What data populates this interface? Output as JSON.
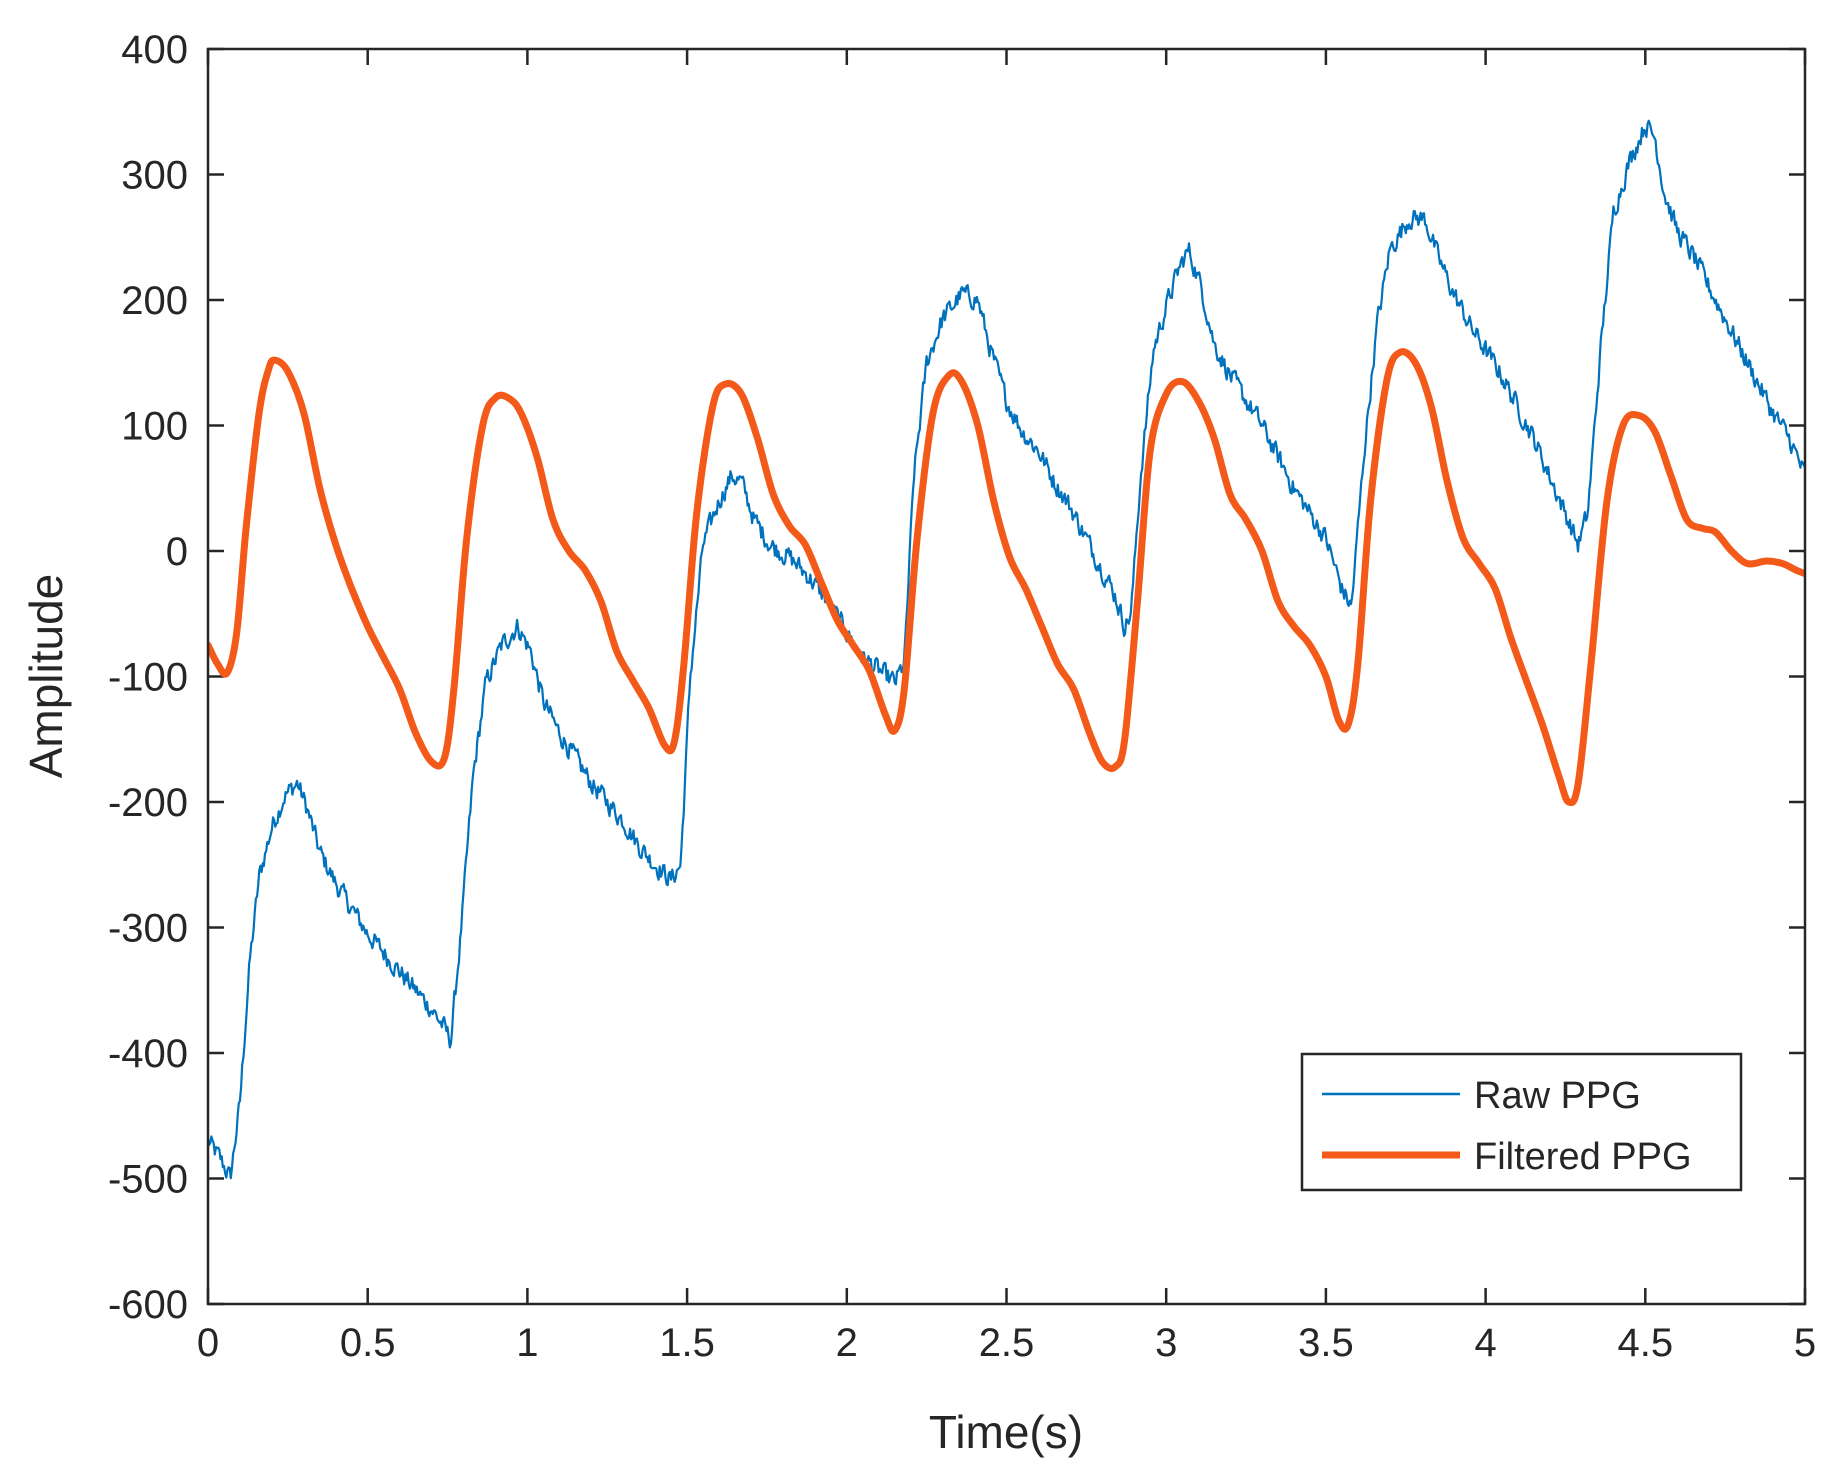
{
  "chart_data": {
    "type": "line",
    "title": "",
    "xlabel": "Time(s)",
    "ylabel": "Amplitude",
    "xlim": [
      0,
      5
    ],
    "ylim": [
      -600,
      400
    ],
    "xticks": [
      0,
      0.5,
      1,
      1.5,
      2,
      2.5,
      3,
      3.5,
      4,
      4.5,
      5
    ],
    "xtick_labels": [
      "0",
      "0.5",
      "1",
      "1.5",
      "2",
      "2.5",
      "3",
      "3.5",
      "4",
      "4.5",
      "5"
    ],
    "yticks": [
      -600,
      -500,
      -400,
      -300,
      -200,
      -100,
      0,
      100,
      200,
      300,
      400
    ],
    "ytick_labels": [
      "-600",
      "-500",
      "-400",
      "-300",
      "-200",
      "-100",
      "0",
      "100",
      "200",
      "300",
      "400"
    ],
    "grid": false,
    "legend": {
      "position": "bottom-right",
      "entries": [
        "Raw PPG",
        "Filtered PPG"
      ]
    },
    "series": [
      {
        "name": "Raw PPG",
        "color": "#0072BD",
        "style": "noisy",
        "noise_amplitude": 12,
        "points": [
          [
            0.0,
            -470
          ],
          [
            0.04,
            -485
          ],
          [
            0.07,
            -500
          ],
          [
            0.1,
            -440
          ],
          [
            0.13,
            -330
          ],
          [
            0.16,
            -260
          ],
          [
            0.2,
            -220
          ],
          [
            0.24,
            -195
          ],
          [
            0.28,
            -185
          ],
          [
            0.31,
            -205
          ],
          [
            0.35,
            -240
          ],
          [
            0.4,
            -265
          ],
          [
            0.45,
            -285
          ],
          [
            0.5,
            -305
          ],
          [
            0.55,
            -320
          ],
          [
            0.6,
            -335
          ],
          [
            0.65,
            -350
          ],
          [
            0.7,
            -365
          ],
          [
            0.74,
            -380
          ],
          [
            0.76,
            -390
          ],
          [
            0.79,
            -310
          ],
          [
            0.83,
            -180
          ],
          [
            0.87,
            -105
          ],
          [
            0.92,
            -75
          ],
          [
            0.97,
            -60
          ],
          [
            1.01,
            -80
          ],
          [
            1.05,
            -120
          ],
          [
            1.1,
            -145
          ],
          [
            1.15,
            -165
          ],
          [
            1.2,
            -185
          ],
          [
            1.25,
            -200
          ],
          [
            1.3,
            -215
          ],
          [
            1.35,
            -235
          ],
          [
            1.4,
            -250
          ],
          [
            1.45,
            -262
          ],
          [
            1.48,
            -250
          ],
          [
            1.51,
            -100
          ],
          [
            1.55,
            5
          ],
          [
            1.6,
            40
          ],
          [
            1.64,
            60
          ],
          [
            1.67,
            55
          ],
          [
            1.71,
            25
          ],
          [
            1.76,
            5
          ],
          [
            1.82,
            -5
          ],
          [
            1.88,
            -20
          ],
          [
            1.94,
            -40
          ],
          [
            2.0,
            -65
          ],
          [
            2.05,
            -85
          ],
          [
            2.1,
            -95
          ],
          [
            2.15,
            -105
          ],
          [
            2.18,
            -90
          ],
          [
            2.21,
            60
          ],
          [
            2.25,
            150
          ],
          [
            2.3,
            185
          ],
          [
            2.36,
            205
          ],
          [
            2.41,
            200
          ],
          [
            2.45,
            160
          ],
          [
            2.5,
            120
          ],
          [
            2.55,
            95
          ],
          [
            2.6,
            80
          ],
          [
            2.65,
            55
          ],
          [
            2.7,
            35
          ],
          [
            2.75,
            10
          ],
          [
            2.8,
            -15
          ],
          [
            2.84,
            -35
          ],
          [
            2.87,
            -60
          ],
          [
            2.89,
            -50
          ],
          [
            2.92,
            60
          ],
          [
            2.96,
            160
          ],
          [
            3.0,
            195
          ],
          [
            3.04,
            225
          ],
          [
            3.07,
            240
          ],
          [
            3.11,
            210
          ],
          [
            3.15,
            165
          ],
          [
            3.2,
            140
          ],
          [
            3.25,
            120
          ],
          [
            3.3,
            100
          ],
          [
            3.35,
            75
          ],
          [
            3.4,
            50
          ],
          [
            3.45,
            30
          ],
          [
            3.5,
            10
          ],
          [
            3.55,
            -30
          ],
          [
            3.58,
            -45
          ],
          [
            3.62,
            80
          ],
          [
            3.66,
            180
          ],
          [
            3.7,
            240
          ],
          [
            3.76,
            265
          ],
          [
            3.81,
            265
          ],
          [
            3.85,
            235
          ],
          [
            3.9,
            205
          ],
          [
            3.95,
            180
          ],
          [
            4.0,
            160
          ],
          [
            4.05,
            140
          ],
          [
            4.1,
            115
          ],
          [
            4.15,
            90
          ],
          [
            4.2,
            60
          ],
          [
            4.25,
            30
          ],
          [
            4.29,
            5
          ],
          [
            4.32,
            30
          ],
          [
            4.36,
            160
          ],
          [
            4.4,
            270
          ],
          [
            4.45,
            310
          ],
          [
            4.5,
            340
          ],
          [
            4.53,
            330
          ],
          [
            4.56,
            285
          ],
          [
            4.6,
            255
          ],
          [
            4.65,
            235
          ],
          [
            4.7,
            210
          ],
          [
            4.75,
            185
          ],
          [
            4.8,
            160
          ],
          [
            4.85,
            135
          ],
          [
            4.9,
            110
          ],
          [
            4.95,
            90
          ],
          [
            5.0,
            60
          ]
        ]
      },
      {
        "name": "Filtered PPG",
        "color": "#F35A1A",
        "style": "smooth",
        "points": [
          [
            0.0,
            -75
          ],
          [
            0.03,
            -90
          ],
          [
            0.06,
            -97
          ],
          [
            0.09,
            -65
          ],
          [
            0.12,
            20
          ],
          [
            0.16,
            110
          ],
          [
            0.19,
            145
          ],
          [
            0.21,
            152
          ],
          [
            0.25,
            143
          ],
          [
            0.3,
            110
          ],
          [
            0.35,
            50
          ],
          [
            0.4,
            5
          ],
          [
            0.45,
            -30
          ],
          [
            0.5,
            -60
          ],
          [
            0.55,
            -85
          ],
          [
            0.6,
            -110
          ],
          [
            0.65,
            -145
          ],
          [
            0.7,
            -168
          ],
          [
            0.74,
            -165
          ],
          [
            0.77,
            -110
          ],
          [
            0.81,
            10
          ],
          [
            0.86,
            100
          ],
          [
            0.9,
            122
          ],
          [
            0.94,
            122
          ],
          [
            0.98,
            110
          ],
          [
            1.03,
            75
          ],
          [
            1.08,
            25
          ],
          [
            1.13,
            0
          ],
          [
            1.18,
            -15
          ],
          [
            1.23,
            -40
          ],
          [
            1.28,
            -80
          ],
          [
            1.33,
            -103
          ],
          [
            1.38,
            -125
          ],
          [
            1.43,
            -155
          ],
          [
            1.46,
            -152
          ],
          [
            1.49,
            -90
          ],
          [
            1.53,
            30
          ],
          [
            1.58,
            115
          ],
          [
            1.62,
            133
          ],
          [
            1.67,
            125
          ],
          [
            1.72,
            90
          ],
          [
            1.77,
            45
          ],
          [
            1.82,
            20
          ],
          [
            1.87,
            5
          ],
          [
            1.92,
            -25
          ],
          [
            1.97,
            -55
          ],
          [
            2.02,
            -75
          ],
          [
            2.07,
            -95
          ],
          [
            2.12,
            -130
          ],
          [
            2.15,
            -143
          ],
          [
            2.18,
            -110
          ],
          [
            2.22,
            10
          ],
          [
            2.27,
            110
          ],
          [
            2.32,
            140
          ],
          [
            2.36,
            135
          ],
          [
            2.41,
            100
          ],
          [
            2.46,
            40
          ],
          [
            2.51,
            -5
          ],
          [
            2.56,
            -30
          ],
          [
            2.61,
            -60
          ],
          [
            2.66,
            -90
          ],
          [
            2.71,
            -110
          ],
          [
            2.76,
            -145
          ],
          [
            2.8,
            -168
          ],
          [
            2.84,
            -172
          ],
          [
            2.87,
            -150
          ],
          [
            2.91,
            -40
          ],
          [
            2.95,
            80
          ],
          [
            3.0,
            125
          ],
          [
            3.05,
            135
          ],
          [
            3.1,
            120
          ],
          [
            3.15,
            90
          ],
          [
            3.2,
            45
          ],
          [
            3.25,
            25
          ],
          [
            3.3,
            0
          ],
          [
            3.35,
            -40
          ],
          [
            3.4,
            -60
          ],
          [
            3.45,
            -75
          ],
          [
            3.5,
            -100
          ],
          [
            3.54,
            -135
          ],
          [
            3.57,
            -138
          ],
          [
            3.6,
            -90
          ],
          [
            3.64,
            40
          ],
          [
            3.69,
            135
          ],
          [
            3.73,
            158
          ],
          [
            3.78,
            150
          ],
          [
            3.83,
            115
          ],
          [
            3.88,
            55
          ],
          [
            3.93,
            10
          ],
          [
            3.98,
            -10
          ],
          [
            4.03,
            -30
          ],
          [
            4.08,
            -70
          ],
          [
            4.13,
            -105
          ],
          [
            4.18,
            -140
          ],
          [
            4.23,
            -180
          ],
          [
            4.26,
            -200
          ],
          [
            4.29,
            -185
          ],
          [
            4.33,
            -90
          ],
          [
            4.38,
            40
          ],
          [
            4.43,
            100
          ],
          [
            4.48,
            108
          ],
          [
            4.53,
            95
          ],
          [
            4.58,
            60
          ],
          [
            4.63,
            25
          ],
          [
            4.68,
            18
          ],
          [
            4.72,
            15
          ],
          [
            4.77,
            0
          ],
          [
            4.82,
            -10
          ],
          [
            4.88,
            -8
          ],
          [
            4.93,
            -10
          ],
          [
            4.97,
            -15
          ],
          [
            5.0,
            -18
          ]
        ]
      }
    ]
  }
}
